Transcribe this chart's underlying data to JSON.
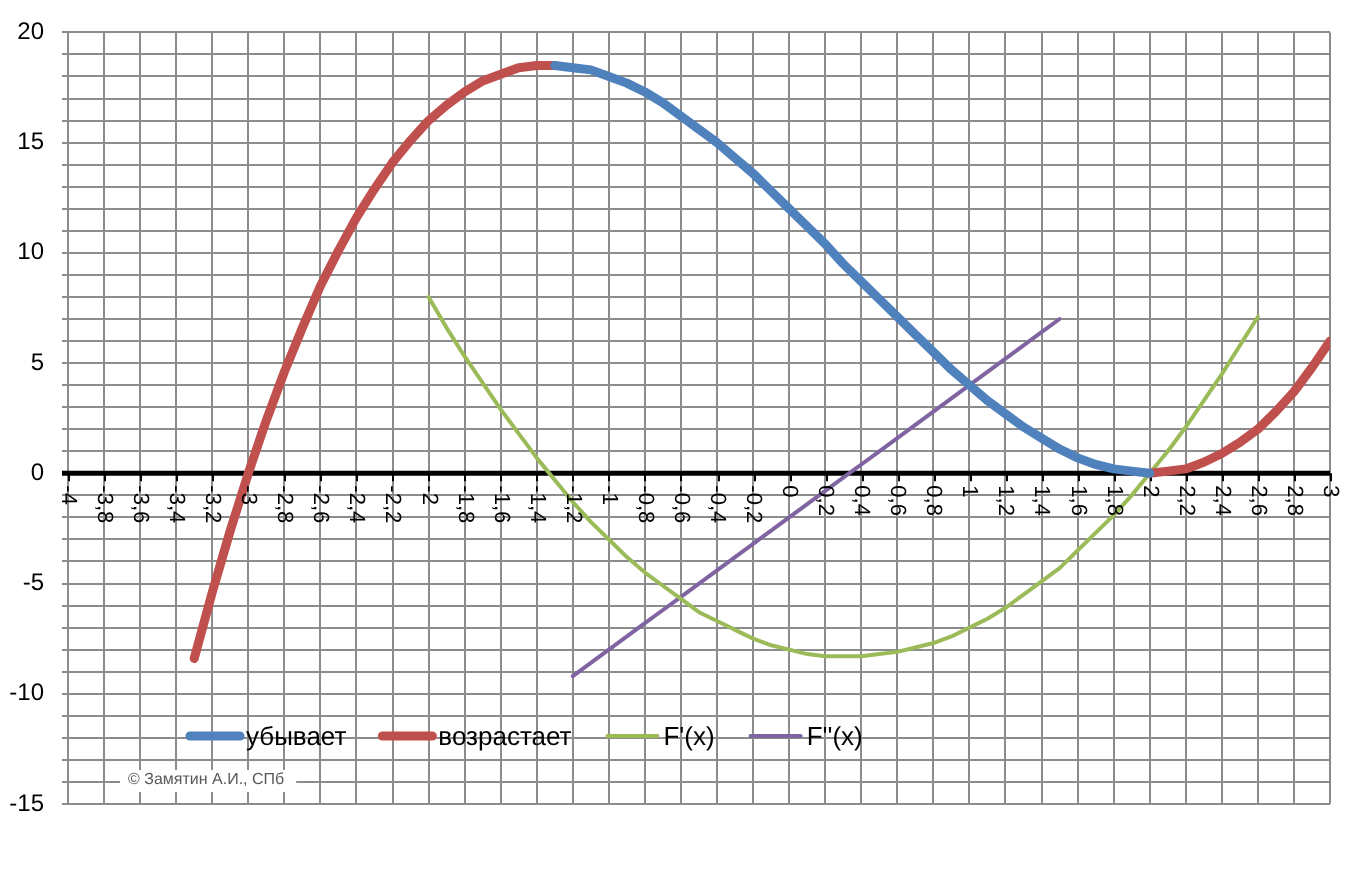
{
  "chart_data": {
    "type": "line",
    "grid": true,
    "legend": "bottom left",
    "annotations": [
      "© Замятин А.И., СПб"
    ],
    "xlim": [
      -4,
      3
    ],
    "ylim": [
      -15,
      20
    ],
    "xticks": [
      -4,
      {
        "value": -3.8,
        "label": "-3,8"
      },
      {
        "value": -3.6,
        "label": "-3,6"
      },
      {
        "value": -3.4,
        "label": "-3,4"
      },
      {
        "value": -3.2,
        "label": "-3,2"
      },
      -3,
      {
        "value": -2.8,
        "label": "-2,8"
      },
      {
        "value": -2.6,
        "label": "-2,6"
      },
      {
        "value": -2.4,
        "label": "-2,4"
      },
      {
        "value": -2.2,
        "label": "-2,2"
      },
      -2,
      {
        "value": -1.8,
        "label": "-1,8"
      },
      {
        "value": -1.6,
        "label": "-1,6"
      },
      {
        "value": -1.4,
        "label": "-1,4"
      },
      {
        "value": -1.2,
        "label": "-1,2"
      },
      -1,
      {
        "value": -0.8,
        "label": "-0,8"
      },
      {
        "value": -0.6,
        "label": "-0,6"
      },
      {
        "value": -0.4,
        "label": "-0,4"
      },
      {
        "value": -0.2,
        "label": "-0,2"
      },
      0,
      {
        "value": 0.2,
        "label": "0,2"
      },
      {
        "value": 0.4,
        "label": "0,4"
      },
      {
        "value": 0.6,
        "label": "0,6"
      },
      {
        "value": 0.8,
        "label": "0,8"
      },
      1,
      {
        "value": 1.2,
        "label": "1,2"
      },
      {
        "value": 1.4,
        "label": "1,4"
      },
      {
        "value": 1.6,
        "label": "1,6"
      },
      {
        "value": 1.8,
        "label": "1,8"
      },
      2,
      {
        "value": 2.2,
        "label": "2,2"
      },
      {
        "value": 2.4,
        "label": "2,4"
      },
      {
        "value": 2.6,
        "label": "2,6"
      },
      {
        "value": 2.8,
        "label": "2,8"
      },
      3
    ],
    "yticks": [
      -15,
      {
        "value": -14,
        "label": null
      },
      {
        "value": -13,
        "label": null
      },
      {
        "value": -12,
        "label": null
      },
      {
        "value": -11,
        "label": null
      },
      -10,
      {
        "value": -9,
        "label": null
      },
      {
        "value": -8,
        "label": null
      },
      {
        "value": -7,
        "label": null
      },
      {
        "value": -6,
        "label": null
      },
      -5,
      {
        "value": -4,
        "label": null
      },
      {
        "value": -3,
        "label": null
      },
      {
        "value": -2,
        "label": null
      },
      {
        "value": -1,
        "label": null
      },
      0,
      {
        "value": 1,
        "label": null
      },
      {
        "value": 2,
        "label": null
      },
      {
        "value": 3,
        "label": null
      },
      {
        "value": 4,
        "label": null
      },
      5,
      {
        "value": 6,
        "label": null
      },
      {
        "value": 7,
        "label": null
      },
      {
        "value": 8,
        "label": null
      },
      {
        "value": 9,
        "label": null
      },
      10,
      {
        "value": 11,
        "label": null
      },
      {
        "value": 12,
        "label": null
      },
      {
        "value": 13,
        "label": null
      },
      {
        "value": 14,
        "label": null
      },
      15,
      {
        "value": 16,
        "label": null
      },
      {
        "value": 17,
        "label": null
      },
      {
        "value": 18,
        "label": null
      },
      {
        "value": 19,
        "label": null
      },
      20
    ],
    "x": [
      -3.3,
      -3.2,
      -3.1,
      -3,
      -2.9,
      -2.8,
      -2.7,
      -2.6,
      -2.5,
      -2.4,
      -2.3,
      -2.2,
      -2.1,
      -2,
      -1.9,
      -1.8,
      -1.7,
      -1.6,
      -1.5,
      -1.4,
      -1.3,
      -1.2,
      -1.1,
      -1,
      -0.9,
      -0.8,
      -0.7,
      -0.6,
      -0.5,
      -0.4,
      -0.3,
      -0.2,
      -0.1,
      0,
      0.1,
      0.2,
      0.3,
      0.4,
      0.5,
      0.6,
      0.7,
      0.8,
      0.9,
      1,
      1.1,
      1.2,
      1.3,
      1.4,
      1.5,
      1.6,
      1.7,
      1.8,
      1.9,
      2,
      2.1,
      2.2,
      2.3,
      2.4,
      2.5,
      2.6,
      2.7,
      2.8,
      2.9,
      3
    ],
    "series": [
      {
        "name": "убывает",
        "color": "#4f81bd",
        "values": [
          null,
          null,
          null,
          null,
          null,
          null,
          null,
          null,
          null,
          null,
          null,
          null,
          null,
          null,
          null,
          null,
          null,
          null,
          null,
          null,
          18.5,
          18.4,
          18.3,
          18,
          17.7,
          17.3,
          16.8,
          16.2,
          15.6,
          15,
          14.3,
          13.6,
          12.8,
          12,
          11.2,
          10.4,
          9.5,
          8.7,
          7.9,
          7.1,
          6.3,
          5.5,
          4.7,
          4,
          3.3,
          2.7,
          2.1,
          1.6,
          1.1,
          0.7,
          0.4,
          0.2,
          0.1,
          0,
          null,
          null,
          null,
          null,
          null,
          null,
          null,
          null,
          null,
          null
        ]
      },
      {
        "name": "возрастает",
        "color": "#c0504d",
        "values": [
          -8.4,
          -5.4,
          -2.6,
          0,
          2.4,
          4.6,
          6.6,
          8.5,
          10.1,
          11.6,
          12.9,
          14.1,
          15.1,
          16,
          16.7,
          17.3,
          17.8,
          18.1,
          18.4,
          18.5,
          18.5,
          null,
          null,
          null,
          null,
          null,
          null,
          null,
          null,
          null,
          null,
          null,
          null,
          null,
          null,
          null,
          null,
          null,
          null,
          null,
          null,
          null,
          null,
          null,
          null,
          null,
          null,
          null,
          null,
          null,
          null,
          null,
          null,
          0,
          0.1,
          0.2,
          0.5,
          0.9,
          1.4,
          2,
          2.8,
          3.7,
          4.8,
          6
        ]
      },
      {
        "name": "F'(x)",
        "color": "#9bbb59",
        "values": [
          null,
          null,
          null,
          null,
          null,
          null,
          null,
          null,
          null,
          null,
          null,
          null,
          null,
          8,
          6.6,
          5.3,
          4.1,
          2.9,
          1.8,
          0.7,
          -0.3,
          -1.3,
          -2.2,
          -3,
          -3.8,
          -4.5,
          -5.1,
          -5.7,
          -6.3,
          -6.7,
          -7.1,
          -7.5,
          -7.8,
          -8,
          -8.2,
          -8.3,
          -8.3,
          -8.3,
          -8.2,
          -8.1,
          -7.9,
          -7.7,
          -7.4,
          -7,
          -6.6,
          -6.1,
          -5.5,
          -4.9,
          -4.3,
          -3.5,
          -2.7,
          -1.9,
          -1,
          0,
          1,
          2.1,
          3.3,
          4.5,
          5.8,
          7.1,
          null,
          null,
          null,
          null
        ]
      },
      {
        "name": "F''(x)",
        "color": "#8064a2",
        "values": [
          null,
          null,
          null,
          null,
          null,
          null,
          null,
          null,
          null,
          null,
          null,
          null,
          null,
          null,
          null,
          null,
          null,
          null,
          null,
          null,
          null,
          -9.2,
          -8.6,
          -8,
          -7.4,
          -6.8,
          -6.2,
          -5.6,
          -5,
          -4.4,
          -3.8,
          -3.2,
          -2.6,
          -2,
          -1.4,
          -0.8,
          -0.2,
          0.4,
          1,
          1.6,
          2.2,
          2.8,
          3.4,
          4,
          4.6,
          5.2,
          5.8,
          6.4,
          7,
          null,
          null,
          null,
          null,
          null,
          null,
          null,
          null,
          null,
          null,
          null,
          null,
          null,
          null,
          null
        ]
      }
    ]
  }
}
